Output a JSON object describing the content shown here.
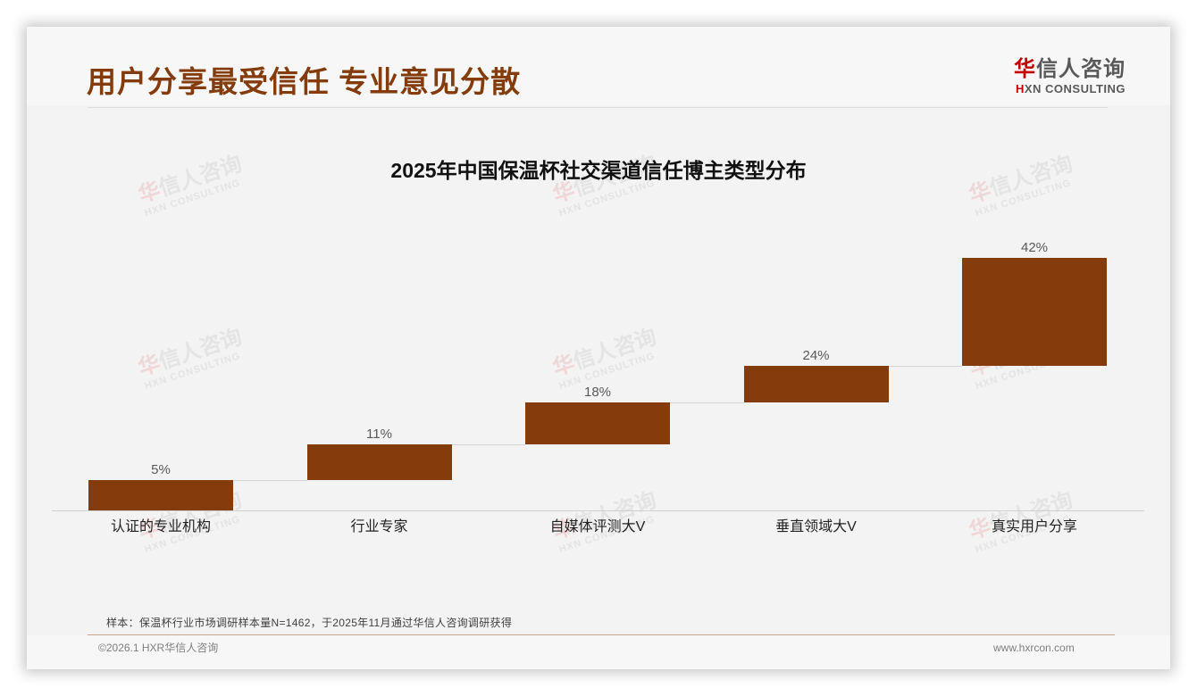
{
  "page": {
    "title": "用户分享最受信任 专业意见分散",
    "logo": {
      "cn_accent": "华",
      "cn_rest": "信人咨询",
      "en_accent": "H",
      "en_rest": "XN CONSULTING"
    },
    "watermark": {
      "cn_accent": "华",
      "cn_rest": "信人咨询",
      "en": "HXN CONSULTING"
    },
    "note": "样本：保温杯行业市场调研样本量N=1462，于2025年11月通过华信人咨询调研获得",
    "copyright": "©2026.1 HXR华信人咨询",
    "website": "www.hxrcon.com"
  },
  "colors": {
    "bar": "#843c0c",
    "title": "#843c0c",
    "logo_accent": "#c00000"
  },
  "chart_data": {
    "type": "bar",
    "subtype": "waterfall",
    "title": "2025年中国保温杯社交渠道信任博主类型分布",
    "categories": [
      "认证的专业机构",
      "行业专家",
      "自媒体评测大V",
      "垂直领域大V",
      "真实用户分享"
    ],
    "values": [
      5,
      11,
      18,
      24,
      42
    ],
    "value_labels": [
      "5%",
      "11%",
      "18%",
      "24%",
      "42%"
    ],
    "unit": "%",
    "xlabel": "",
    "ylabel": "",
    "grid": false,
    "legend": null
  }
}
